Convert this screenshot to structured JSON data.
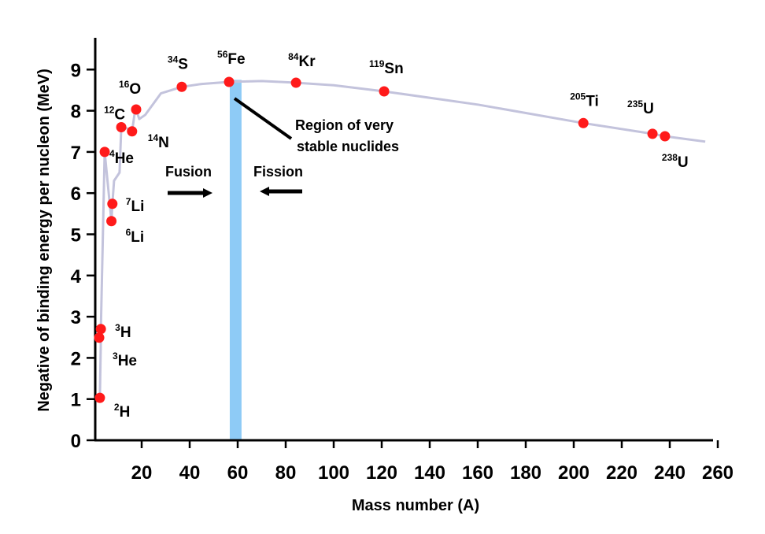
{
  "chart_data": {
    "type": "line",
    "xlabel": "Mass number (A)",
    "ylabel": "Negative of binding energy per nucleon (MeV)",
    "xlim": [
      0,
      260
    ],
    "ylim": [
      0,
      9.5
    ],
    "xticks": [
      20,
      40,
      60,
      80,
      100,
      120,
      140,
      160,
      180,
      200,
      220,
      240,
      260
    ],
    "yticks": [
      0,
      1,
      2,
      3,
      4,
      5,
      6,
      7,
      8,
      9
    ],
    "grid": false,
    "line_color": "#c3c3dc",
    "point_color": "#ff1a1a",
    "band_color": "#8ecbf6",
    "curve": {
      "x": [
        2.6,
        3,
        3,
        4.6,
        7.4,
        7.8,
        8.5,
        10.8,
        11.5,
        13,
        16,
        17,
        17.7,
        19,
        21.5,
        28,
        36.7,
        45,
        56.4,
        70,
        84.3,
        100,
        121,
        160,
        204,
        232.8,
        238,
        254.8
      ],
      "y": [
        1.03,
        2.5,
        2.75,
        7.0,
        5.32,
        5.74,
        6.3,
        6.5,
        7.6,
        7.6,
        7.5,
        7.9,
        8.03,
        7.8,
        7.9,
        8.42,
        8.58,
        8.65,
        8.7,
        8.72,
        8.68,
        8.62,
        8.47,
        8.15,
        7.7,
        7.44,
        7.38,
        7.25
      ]
    },
    "points": [
      {
        "mass": "2",
        "symbol": "H",
        "x": 2.6,
        "y": 1.03
      },
      {
        "mass": "3",
        "symbol": "He",
        "x": 2.3,
        "y": 2.49
      },
      {
        "mass": "3",
        "symbol": "H",
        "x": 3.0,
        "y": 2.7
      },
      {
        "mass": "4",
        "symbol": "He",
        "x": 4.6,
        "y": 7.0
      },
      {
        "mass": "6",
        "symbol": "Li",
        "x": 7.4,
        "y": 5.32
      },
      {
        "mass": "7",
        "symbol": "Li",
        "x": 7.8,
        "y": 5.74
      },
      {
        "mass": "12",
        "symbol": "C",
        "x": 11.5,
        "y": 7.6
      },
      {
        "mass": "14",
        "symbol": "N",
        "x": 16.0,
        "y": 7.5
      },
      {
        "mass": "16",
        "symbol": "O",
        "x": 17.7,
        "y": 8.03
      },
      {
        "mass": "34",
        "symbol": "S",
        "x": 36.7,
        "y": 8.58
      },
      {
        "mass": "56",
        "symbol": "Fe",
        "x": 56.4,
        "y": 8.7
      },
      {
        "mass": "84",
        "symbol": "Kr",
        "x": 84.3,
        "y": 8.68
      },
      {
        "mass": "119",
        "symbol": "Sn",
        "x": 121.0,
        "y": 8.47
      },
      {
        "mass": "205",
        "symbol": "Ti",
        "x": 204.0,
        "y": 7.7
      },
      {
        "mass": "235",
        "symbol": "U",
        "x": 232.8,
        "y": 7.44
      },
      {
        "mass": "238",
        "symbol": "U",
        "x": 238.0,
        "y": 7.38
      }
    ],
    "stable_band": {
      "x_from": 56.7,
      "x_to": 61.6
    },
    "annotations": {
      "region_line1": "Region of very",
      "region_line2": "stable nuclides",
      "fusion": "Fusion",
      "fission": "Fission"
    }
  }
}
